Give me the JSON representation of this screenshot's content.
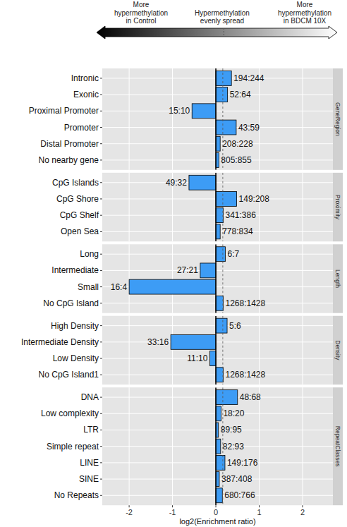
{
  "chart_data": [
    {
      "type": "bar",
      "orientation": "horizontal",
      "title": "GeneRegion",
      "color_bar_labels": [
        "More\nhypermethylation\nin Control",
        "Hypermethylation\nevenly spread",
        "More\nhypermethylation\nin BDCM 10X"
      ],
      "categories": [
        "Intronic",
        "Exonic",
        "Proximal Promoter",
        "Promoter",
        "Distal Promoter",
        "No nearby gene"
      ],
      "values": [
        0.36,
        0.27,
        -0.55,
        0.47,
        0.1,
        0.07
      ],
      "annotations": [
        "194:244",
        "52:64",
        "15:10",
        "43:59",
        "208:228",
        "805:855"
      ],
      "color": "#3d9cf5",
      "xlim": [
        -2.62,
        2.7
      ],
      "xticks": [
        -2,
        -1,
        0,
        1,
        2
      ],
      "baseline": 0,
      "reference_line": 0.16,
      "grid": true,
      "tick_labels": "y"
    },
    {
      "type": "bar",
      "orientation": "horizontal",
      "title": "Proximity",
      "categories": [
        "CpG Islands",
        "CpG Shore",
        "CpG Shelf",
        "Open Sea"
      ],
      "values": [
        -0.62,
        0.48,
        0.17,
        0.1
      ],
      "annotations": [
        "49:32",
        "149:208",
        "341:386",
        "778:834"
      ],
      "color": "#3d9cf5",
      "xlim": [
        -2.62,
        2.7
      ],
      "xticks": [
        -2,
        -1,
        0,
        1,
        2
      ],
      "baseline": 0,
      "reference_line": 0.16,
      "grid": true,
      "tick_labels": "y"
    },
    {
      "type": "bar",
      "orientation": "horizontal",
      "title": "Length",
      "categories": [
        "Long",
        "Intermediate",
        "Small",
        "No CpG Island"
      ],
      "values": [
        0.22,
        -0.36,
        -2.0,
        0.17
      ],
      "annotations": [
        "6:7",
        "27:21",
        "16:4",
        "1268:1428"
      ],
      "color": "#3d9cf5",
      "xlim": [
        -2.62,
        2.7
      ],
      "xticks": [
        -2,
        -1,
        0,
        1,
        2
      ],
      "baseline": 0,
      "reference_line": 0.16,
      "grid": true,
      "tick_labels": "y"
    },
    {
      "type": "bar",
      "orientation": "horizontal",
      "title": "Density",
      "categories": [
        "High Density",
        "Intermediate Density",
        "Low Density",
        "No CpG Island1"
      ],
      "values": [
        0.26,
        -1.04,
        -0.14,
        0.17
      ],
      "annotations": [
        "5:6",
        "33:16",
        "11:10",
        "1268:1428"
      ],
      "color": "#3d9cf5",
      "xlim": [
        -2.62,
        2.7
      ],
      "xticks": [
        -2,
        -1,
        0,
        1,
        2
      ],
      "baseline": 0,
      "reference_line": 0.16,
      "grid": true,
      "tick_labels": "y"
    },
    {
      "type": "bar",
      "orientation": "horizontal",
      "title": "RepeatClasses",
      "categories": [
        "DNA",
        "Low complexity",
        "LTR",
        "Simple repeat",
        "LINE",
        "SINE",
        "No Repeats"
      ],
      "values": [
        0.5,
        0.12,
        0.06,
        0.11,
        0.21,
        0.08,
        0.15
      ],
      "annotations": [
        "48:68",
        "18:20",
        "89:95",
        "82:93",
        "149:176",
        "387:408",
        "680:766"
      ],
      "color": "#3d9cf5",
      "xlim": [
        -2.62,
        2.7
      ],
      "xticks": [
        -2,
        -1,
        0,
        1,
        2
      ],
      "baseline": 0,
      "reference_line": 0.16,
      "grid": true,
      "xlabel": "log2(Enrichment ratio)"
    }
  ]
}
